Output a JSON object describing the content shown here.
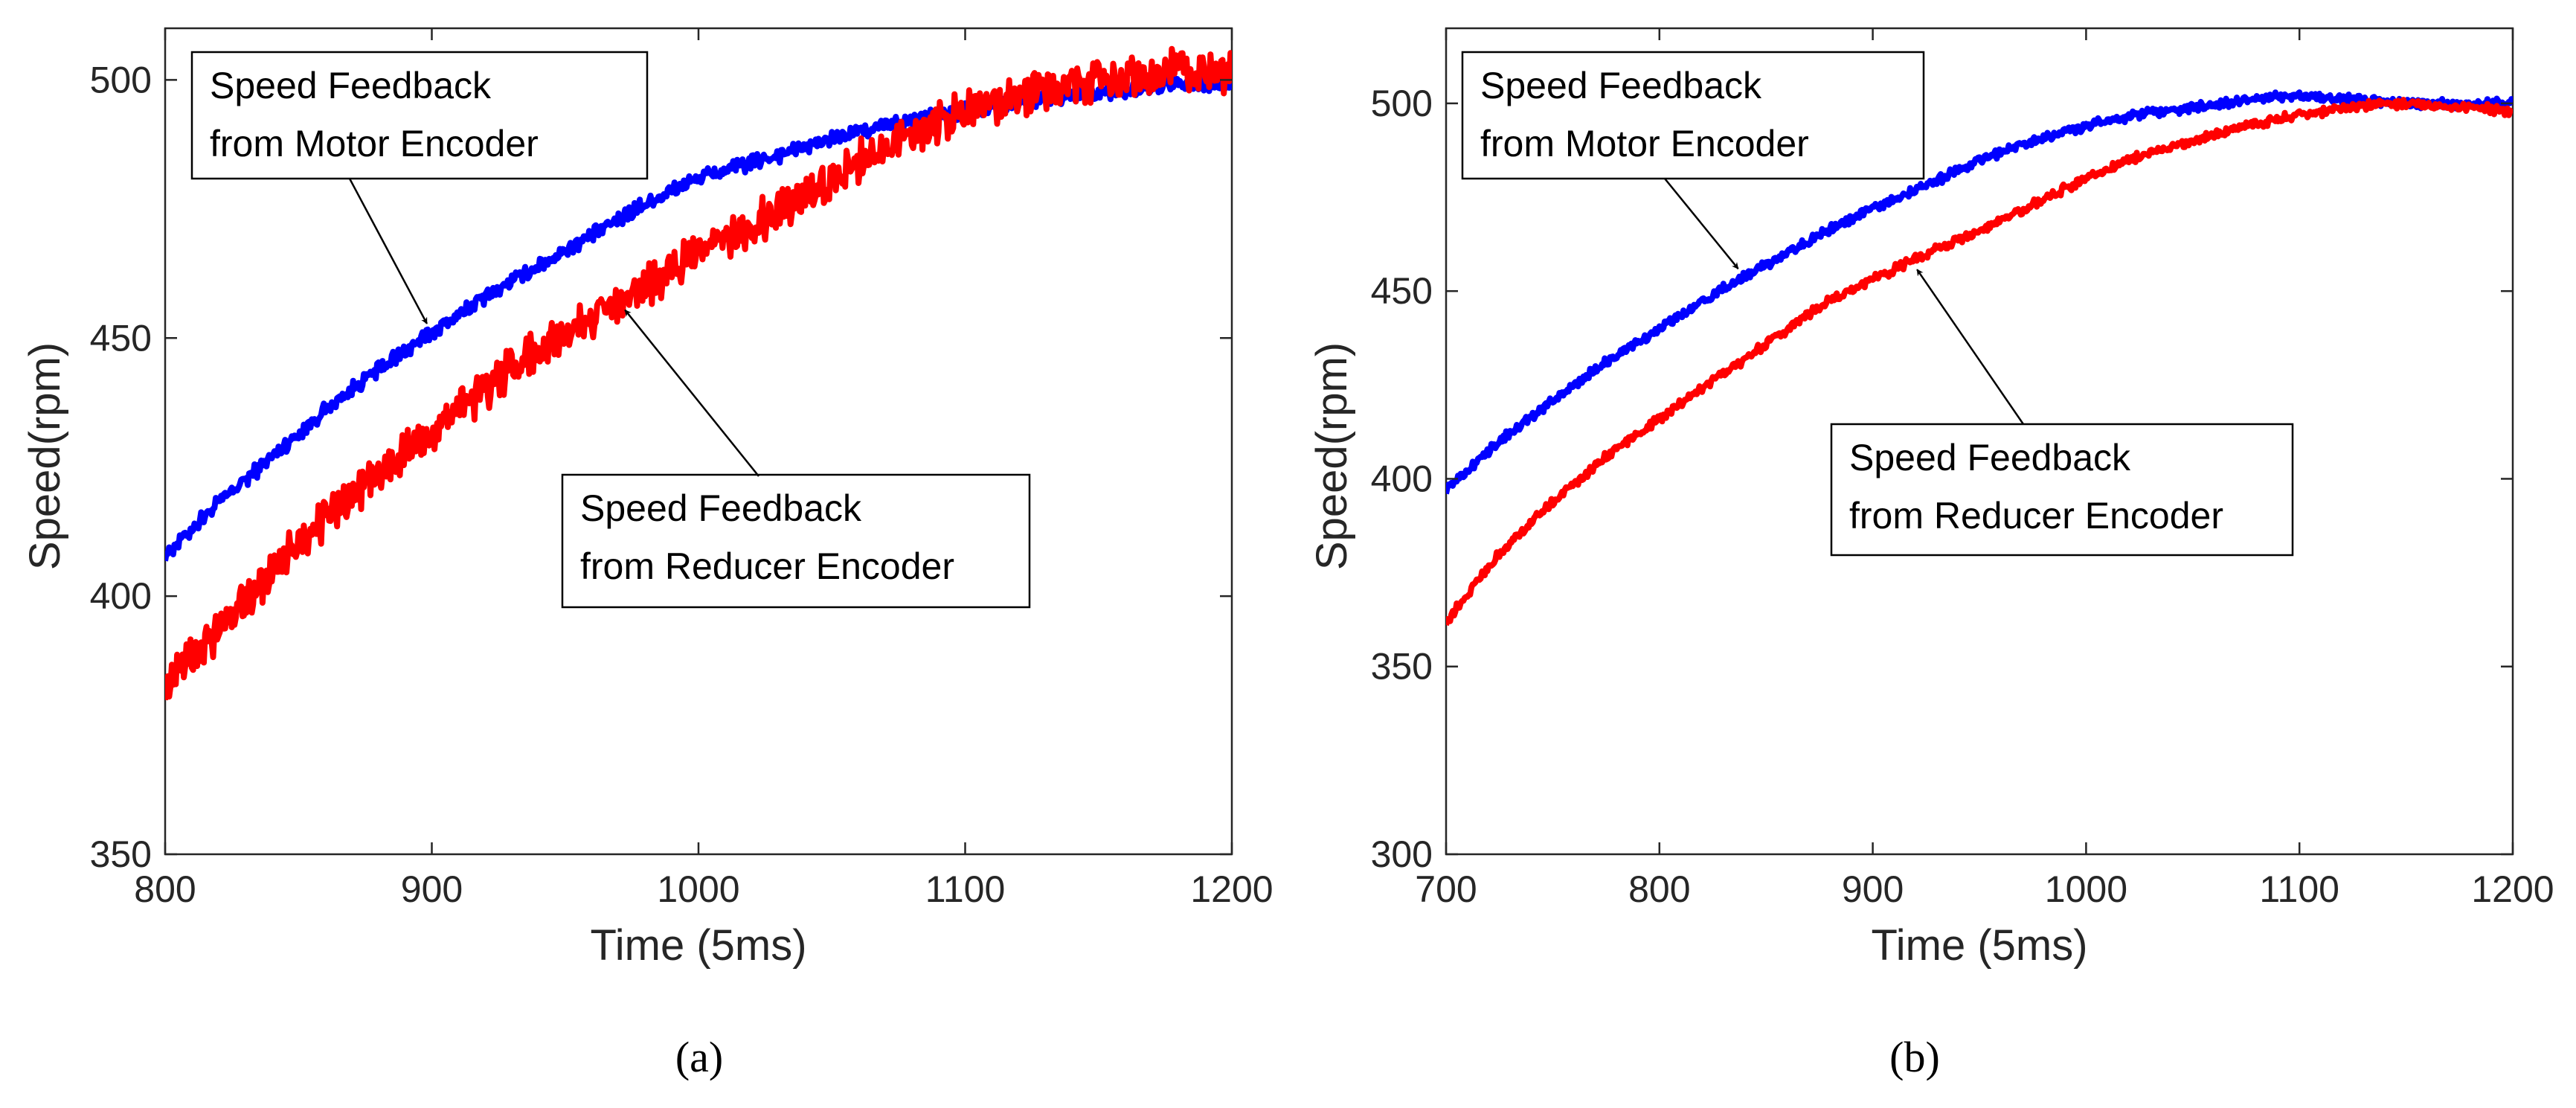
{
  "colors": {
    "motor": "#0000ff",
    "reducer": "#ff0000",
    "axis": "#262626"
  },
  "chart_data": [
    {
      "type": "line",
      "panel_label": "(a)",
      "xlabel": "Time (5ms)",
      "ylabel": "Speed(rpm)",
      "xlim": [
        800,
        1200
      ],
      "ylim": [
        350,
        510
      ],
      "xticks": [
        800,
        900,
        1000,
        1100,
        1200
      ],
      "yticks": [
        350,
        400,
        450,
        500
      ],
      "grid": false,
      "annotations": [
        {
          "lines": [
            "Speed Feedback",
            "from Motor Encoder"
          ],
          "target_series": "motor"
        },
        {
          "lines": [
            "Speed Feedback",
            "from Reducer Encoder"
          ],
          "target_series": "reducer"
        }
      ],
      "series": [
        {
          "key": "motor",
          "color": "#0000ff",
          "x": [
            800,
            820,
            840,
            860,
            880,
            900,
            920,
            940,
            960,
            980,
            1000,
            1020,
            1040,
            1060,
            1080,
            1100,
            1120,
            1140,
            1160,
            1180,
            1200
          ],
          "y": [
            408,
            418,
            427,
            436,
            444,
            451,
            458,
            464,
            470,
            476,
            481,
            484,
            487,
            490,
            492,
            494,
            496,
            497,
            498,
            499,
            499
          ],
          "noise": 1.2
        },
        {
          "key": "reducer",
          "color": "#ff0000",
          "x": [
            800,
            820,
            840,
            860,
            880,
            900,
            920,
            940,
            960,
            980,
            1000,
            1020,
            1040,
            1060,
            1080,
            1100,
            1120,
            1140,
            1160,
            1180,
            1200
          ],
          "y": [
            383,
            393,
            405,
            415,
            424,
            432,
            440,
            448,
            454,
            460,
            466,
            472,
            477,
            484,
            490,
            494,
            497,
            499,
            500,
            502,
            501
          ],
          "noise": 3.2
        }
      ]
    },
    {
      "type": "line",
      "panel_label": "(b)",
      "xlabel": "Time (5ms)",
      "ylabel": "Speed(rpm)",
      "xlim": [
        700,
        1200
      ],
      "ylim": [
        300,
        520
      ],
      "xticks": [
        700,
        800,
        900,
        1000,
        1100,
        1200
      ],
      "yticks": [
        300,
        350,
        400,
        450,
        500
      ],
      "grid": false,
      "annotations": [
        {
          "lines": [
            "Speed Feedback",
            "from Motor Encoder"
          ],
          "target_series": "motor"
        },
        {
          "lines": [
            "Speed Feedback",
            "from Reducer Encoder"
          ],
          "target_series": "reducer"
        }
      ],
      "series": [
        {
          "key": "motor",
          "color": "#0000ff",
          "x": [
            700,
            725,
            750,
            775,
            800,
            825,
            850,
            875,
            900,
            925,
            950,
            975,
            1000,
            1025,
            1050,
            1075,
            1100,
            1125,
            1150,
            1175,
            1200
          ],
          "y": [
            397,
            410,
            421,
            431,
            440,
            449,
            457,
            465,
            472,
            478,
            485,
            490,
            494,
            497,
            499,
            501,
            502,
            501,
            500,
            500,
            500
          ],
          "noise": 1.0
        },
        {
          "key": "reducer",
          "color": "#ff0000",
          "x": [
            700,
            725,
            750,
            775,
            800,
            825,
            850,
            875,
            900,
            925,
            950,
            975,
            1000,
            1025,
            1050,
            1075,
            1100,
            1125,
            1150,
            1175,
            1200
          ],
          "y": [
            362,
            380,
            394,
            406,
            416,
            426,
            436,
            446,
            453,
            460,
            466,
            473,
            480,
            486,
            490,
            494,
            497,
            499,
            500,
            499,
            498
          ],
          "noise": 1.0
        }
      ]
    }
  ]
}
